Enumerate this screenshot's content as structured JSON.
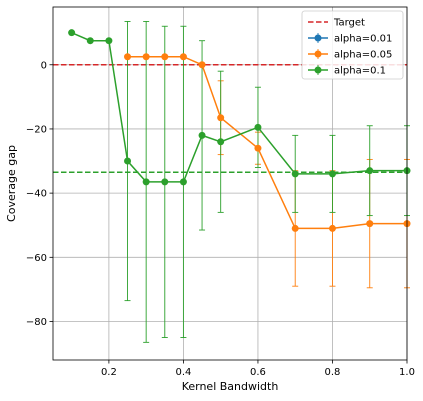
{
  "chart_data": {
    "type": "line",
    "title": "",
    "xlabel": "Kernel Bandwidth",
    "ylabel": "Coverage gap",
    "xlim": [
      0.05,
      1.0
    ],
    "ylim": [
      -92,
      18
    ],
    "xticks": [
      0.2,
      0.4,
      0.6,
      0.8,
      1.0
    ],
    "xtick_labels": [
      "0.2",
      "0.4",
      "0.6",
      "0.8",
      "1.0"
    ],
    "yticks": [
      0,
      -20,
      -40,
      -60,
      -80
    ],
    "ytick_labels": [
      "0",
      "−20",
      "−40",
      "−60",
      "−80"
    ],
    "grid": true,
    "legend_position": "top-right",
    "target": {
      "name": "Target",
      "y": 0,
      "color": "#d62728",
      "style": "dashed"
    },
    "series": [
      {
        "name": "alpha=0.01",
        "color": "#1f77b4",
        "x": [],
        "y": [],
        "err": []
      },
      {
        "name": "alpha=0.05",
        "color": "#ff7f0e",
        "x": [
          0.25,
          0.3,
          0.35,
          0.4,
          0.45,
          0.5,
          0.6,
          0.7,
          0.8,
          0.9,
          1.0
        ],
        "y": [
          2.5,
          2.5,
          2.5,
          2.5,
          0,
          -16.5,
          -26,
          -51,
          -51,
          -49.5,
          -49.5
        ],
        "err": [
          0,
          0,
          0,
          0,
          0,
          11.5,
          5,
          18,
          18,
          20,
          20
        ],
        "mean_line": null
      },
      {
        "name": "alpha=0.1",
        "color": "#2ca02c",
        "x": [
          0.1,
          0.15,
          0.2,
          0.25,
          0.3,
          0.35,
          0.4,
          0.45,
          0.5,
          0.6,
          0.7,
          0.8,
          0.9,
          1.0
        ],
        "y": [
          10,
          7.5,
          7.5,
          -30,
          -36.5,
          -36.5,
          -36.5,
          -22,
          -24,
          -19.5,
          -34,
          -34,
          -33,
          -33
        ],
        "err": [
          0,
          0,
          0,
          43.5,
          50,
          48.5,
          48.5,
          29.5,
          22,
          12.5,
          12,
          12,
          14,
          14
        ],
        "mean_line": -33.5
      }
    ]
  }
}
